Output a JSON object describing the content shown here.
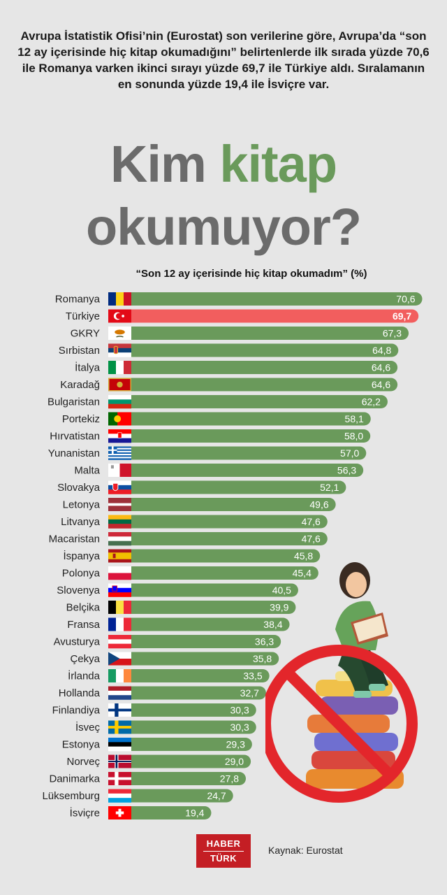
{
  "intro_text": "Avrupa İstatistik Ofisi’nin (Eurostat) son verilerine göre, Avrupa’da “son 12 ay içerisinde hiç kitap okumadığını” belirtenlerde ilk sırada yüzde 70,6 ile Romanya varken ikinci sırayı yüzde 69,7 ile Türkiye aldı. Sıralamanın en sonunda yüzde 19,4 ile İsviçre var.",
  "headline": {
    "part1": "Kim ",
    "part2": "kitap",
    "part3": "okumuyor?"
  },
  "colors": {
    "bar": "#6a9a5b",
    "highlight": "#f25e5e",
    "headline_grey": "#6b6b6b"
  },
  "chart_data": {
    "type": "bar",
    "orientation": "horizontal",
    "title": "“Son 12 ay içerisinde hiç kitap okumadım” (%)",
    "highlight": "Türkiye",
    "categories": [
      "Romanya",
      "Türkiye",
      "GKRY",
      "Sırbistan",
      "İtalya",
      "Karadağ",
      "Bulgaristan",
      "Portekiz",
      "Hırvatistan",
      "Yunanistan",
      "Malta",
      "Slovakya",
      "Letonya",
      "Litvanya",
      "Macaristan",
      "İspanya",
      "Polonya",
      "Slovenya",
      "Belçika",
      "Fransa",
      "Avusturya",
      "Çekya",
      "İrlanda",
      "Hollanda",
      "Finlandiya",
      "İsveç",
      "Estonya",
      "Norveç",
      "Danimarka",
      "Lüksemburg",
      "İsviçre"
    ],
    "values": [
      70.6,
      69.7,
      67.3,
      64.8,
      64.6,
      64.6,
      62.2,
      58.1,
      58.0,
      57.0,
      56.3,
      52.1,
      49.6,
      47.6,
      47.6,
      45.8,
      45.4,
      40.5,
      39.9,
      38.4,
      36.3,
      35.8,
      33.5,
      32.7,
      30.3,
      30.3,
      29.3,
      29.0,
      27.8,
      24.7,
      19.4
    ],
    "value_labels": [
      "70,6",
      "69,7",
      "67,3",
      "64,8",
      "64,6",
      "64,6",
      "62,2",
      "58,1",
      "58,0",
      "57,0",
      "56,3",
      "52,1",
      "49,6",
      "47,6",
      "47,6",
      "45,8",
      "45,4",
      "40,5",
      "39,9",
      "38,4",
      "36,3",
      "35,8",
      "33,5",
      "32,7",
      "30,3",
      "30,3",
      "29,3",
      "29,0",
      "27,8",
      "24,7",
      "19,4"
    ],
    "flags": [
      "ro",
      "tr",
      "cy",
      "rs",
      "it",
      "me",
      "bg",
      "pt",
      "hr",
      "gr",
      "mt",
      "sk",
      "lv",
      "lt",
      "hu",
      "es",
      "pl",
      "si",
      "be",
      "fr",
      "at",
      "cz",
      "ie",
      "nl",
      "fi",
      "se",
      "ee",
      "no",
      "dk",
      "lu",
      "ch"
    ]
  },
  "footer": {
    "logo_top": "HABER",
    "logo_bottom": "TÜRK",
    "source": "Kaynak: Eurostat"
  },
  "illustration_icon": "girl-reading-on-books-prohibited-icon"
}
